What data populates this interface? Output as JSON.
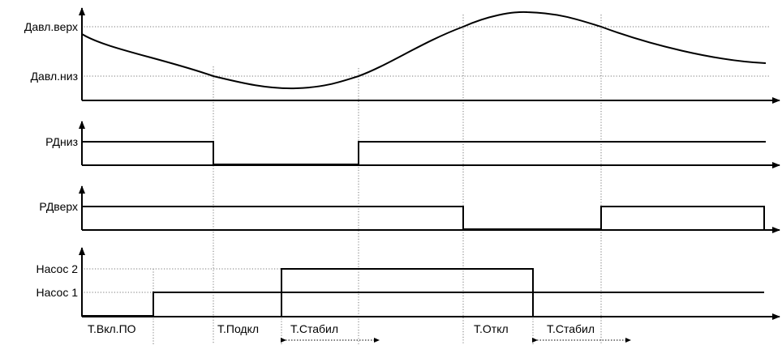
{
  "panels": {
    "pressure": {
      "levels": {
        "high": "Давл.верх",
        "low": "Давл.низ"
      }
    },
    "rd_low": {
      "label": "РДниз"
    },
    "rd_high": {
      "label": "РДверх"
    },
    "pumps": {
      "levels": {
        "pump2": "Насос 2",
        "pump1": "Насос 1"
      }
    }
  },
  "timing": {
    "t_on": "Т.Вкл.ПО",
    "t_connect": "Т.Подкл",
    "t_stab_1": "Т.Стабил",
    "t_off": "Т.Откл",
    "t_stab_2": "Т.Стабил"
  }
}
